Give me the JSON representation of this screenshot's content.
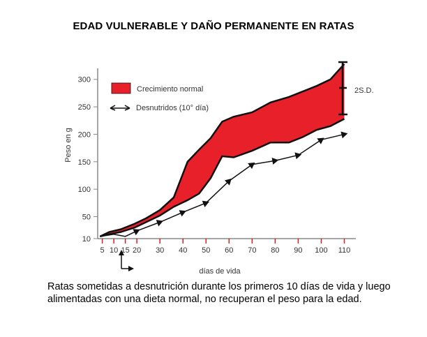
{
  "title": "EDAD VULNERABLE Y DAÑO PERMANENTE EN RATAS",
  "caption": "Ratas sometidas a desnutrición durante los primeros 10 días de vida y luego alimentadas con una dieta normal, no recuperan el peso para la edad.",
  "colors": {
    "band_fill": "#e8202a",
    "line": "#111111",
    "axis": "#888888",
    "tick": "#d62020"
  },
  "chart_data": {
    "type": "area",
    "xlabel": "días de vida",
    "ylabel": "Peso en g",
    "xlim": [
      3,
      115
    ],
    "ylim": [
      10,
      320
    ],
    "x_ticks": [
      5,
      10,
      15,
      20,
      30,
      40,
      50,
      60,
      70,
      80,
      90,
      100,
      110
    ],
    "y_ticks": [
      10,
      50,
      100,
      150,
      200,
      250,
      300
    ],
    "series": [
      {
        "name": "Crecimiento normal",
        "style": "band",
        "x": [
          4,
          8,
          13,
          19,
          24,
          30,
          36,
          42,
          47,
          52,
          57,
          62,
          70,
          78,
          86,
          92,
          98,
          104,
          110
        ],
        "upper": [
          14,
          22,
          27,
          37,
          47,
          62,
          85,
          150,
          172,
          193,
          223,
          232,
          240,
          258,
          268,
          278,
          288,
          300,
          328
        ],
        "lower": [
          14,
          18,
          22,
          30,
          40,
          52,
          68,
          80,
          92,
          120,
          160,
          158,
          170,
          185,
          185,
          195,
          208,
          215,
          228
        ]
      },
      {
        "name": "Desnutridos (10° día)",
        "style": "line-arrows",
        "x": [
          4,
          10,
          15,
          20,
          30,
          40,
          50,
          60,
          70,
          80,
          90,
          100,
          110
        ],
        "y": [
          14,
          18,
          14,
          24,
          40,
          58,
          75,
          115,
          145,
          152,
          162,
          190,
          200
        ]
      }
    ],
    "annotations": [
      {
        "text": "2S.D.",
        "x": 110,
        "y_range": [
          228,
          328
        ]
      }
    ],
    "marker": {
      "x": 10,
      "note": "arrow at 10 days"
    }
  }
}
